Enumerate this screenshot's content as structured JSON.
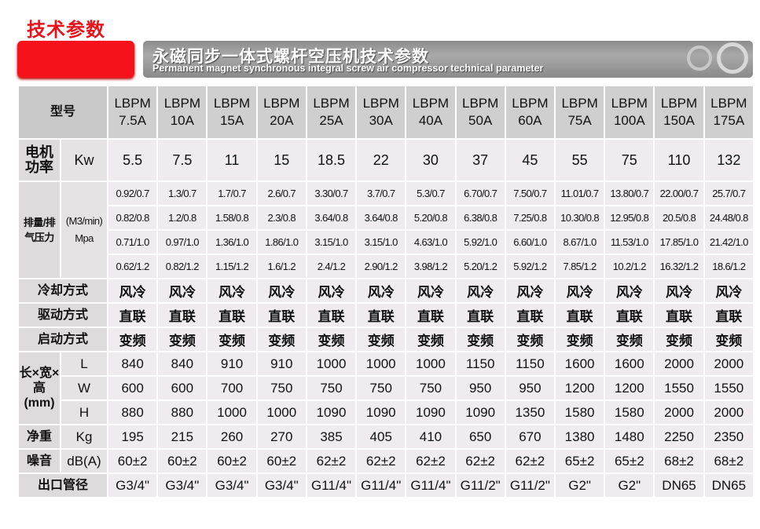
{
  "page_title": "技术参数",
  "banner": {
    "title_cn": "永磁同步一体式螺杆空压机技术参数",
    "title_en": "Permanent magnet synchronous integral screw air compressor technical parameter"
  },
  "colors": {
    "accent_red": "#f5121a",
    "header_grey": "#cfcfcf",
    "cell_bg": "#efebee"
  },
  "table": {
    "model_label": "型号",
    "models": [
      "LBPM 7.5A",
      "LBPM 10A",
      "LBPM 15A",
      "LBPM 20A",
      "LBPM 25A",
      "LBPM 30A",
      "LBPM 40A",
      "LBPM 50A",
      "LBPM 60A",
      "LBPM 75A",
      "LBPM 100A",
      "LBPM 150A",
      "LBPM 175A"
    ],
    "power": {
      "label": "电机功率",
      "unit": "Kw",
      "values": [
        "5.5",
        "7.5",
        "11",
        "15",
        "18.5",
        "22",
        "30",
        "37",
        "45",
        "55",
        "75",
        "110",
        "132"
      ]
    },
    "flow": {
      "label": "排量/排气压力",
      "unit": "(M3/min) Mpa",
      "rows": [
        [
          "0.92/0.7",
          "1.3/0.7",
          "1.7/0.7",
          "2.6/0.7",
          "3.30/0.7",
          "3.7/0.7",
          "5.3/0.7",
          "6.70/0.7",
          "7.50/0.7",
          "11.01/0.7",
          "13.80/0.7",
          "22.00/0.7",
          "25.7/0.7"
        ],
        [
          "0.82/0.8",
          "1.2/0.8",
          "1.58/0.8",
          "2.3/0.8",
          "3.64/0.8",
          "3.64/0.8",
          "5.20/0.8",
          "6.38/0.8",
          "7.25/0.8",
          "10.30/0.8",
          "12.95/0.8",
          "20.5/0.8",
          "24.48/0.8"
        ],
        [
          "0.71/1.0",
          "0.97/1.0",
          "1.36/1.0",
          "1.86/1.0",
          "3.15/1.0",
          "3.15/1.0",
          "4.63/1.0",
          "5.92/1.0",
          "6.60/1.0",
          "8.67/1.0",
          "11.53/1.0",
          "17.85/1.0",
          "21.42/1.0"
        ],
        [
          "0.62/1.2",
          "0.82/1.2",
          "1.15/1.2",
          "1.6/1.2",
          "2.4/1.2",
          "2.90/1.2",
          "3.98/1.2",
          "5.20/1.2",
          "5.92/1.2",
          "7.85/1.2",
          "10.2/1.2",
          "16.32/1.2",
          "18.6/1.2"
        ]
      ]
    },
    "cooling": {
      "label": "冷却方式",
      "values": [
        "风冷",
        "风冷",
        "风冷",
        "风冷",
        "风冷",
        "风冷",
        "风冷",
        "风冷",
        "风冷",
        "风冷",
        "风冷",
        "风冷",
        "风冷"
      ]
    },
    "drive": {
      "label": "驱动方式",
      "values": [
        "直联",
        "直联",
        "直联",
        "直联",
        "直联",
        "直联",
        "直联",
        "直联",
        "直联",
        "直联",
        "直联",
        "直联",
        "直联"
      ]
    },
    "start": {
      "label": "启动方式",
      "values": [
        "变频",
        "变频",
        "变频",
        "变频",
        "变频",
        "变频",
        "变频",
        "变频",
        "变频",
        "变频",
        "变频",
        "变频",
        "变频"
      ]
    },
    "dimensions": {
      "label": "长×宽×高(mm)",
      "rows": [
        {
          "unit": "L",
          "values": [
            "840",
            "840",
            "910",
            "910",
            "1000",
            "1000",
            "1000",
            "1150",
            "1150",
            "1600",
            "1600",
            "2000",
            "2000"
          ]
        },
        {
          "unit": "W",
          "values": [
            "600",
            "600",
            "700",
            "750",
            "750",
            "750",
            "750",
            "950",
            "950",
            "1200",
            "1200",
            "1550",
            "1550"
          ]
        },
        {
          "unit": "H",
          "values": [
            "880",
            "880",
            "1000",
            "1000",
            "1090",
            "1090",
            "1090",
            "1090",
            "1350",
            "1580",
            "1580",
            "2000",
            "2000"
          ]
        }
      ]
    },
    "weight": {
      "label": "净重",
      "unit": "Kg",
      "values": [
        "195",
        "215",
        "260",
        "270",
        "385",
        "405",
        "410",
        "650",
        "670",
        "1380",
        "1480",
        "2250",
        "2350"
      ]
    },
    "noise": {
      "label": "噪音",
      "unit": "dB(A)",
      "values": [
        "60±2",
        "60±2",
        "60±2",
        "60±2",
        "62±2",
        "62±2",
        "62±2",
        "62±2",
        "62±2",
        "65±2",
        "65±2",
        "68±2",
        "68±2"
      ]
    },
    "outlet": {
      "label": "出口管径",
      "values": [
        "G3/4\"",
        "G3/4\"",
        "G3/4\"",
        "G3/4\"",
        "G11/4\"",
        "G11/4\"",
        "G11/4\"",
        "G11/2\"",
        "G11/2\"",
        "G2\"",
        "G2\"",
        "DN65",
        "DN65"
      ]
    }
  }
}
